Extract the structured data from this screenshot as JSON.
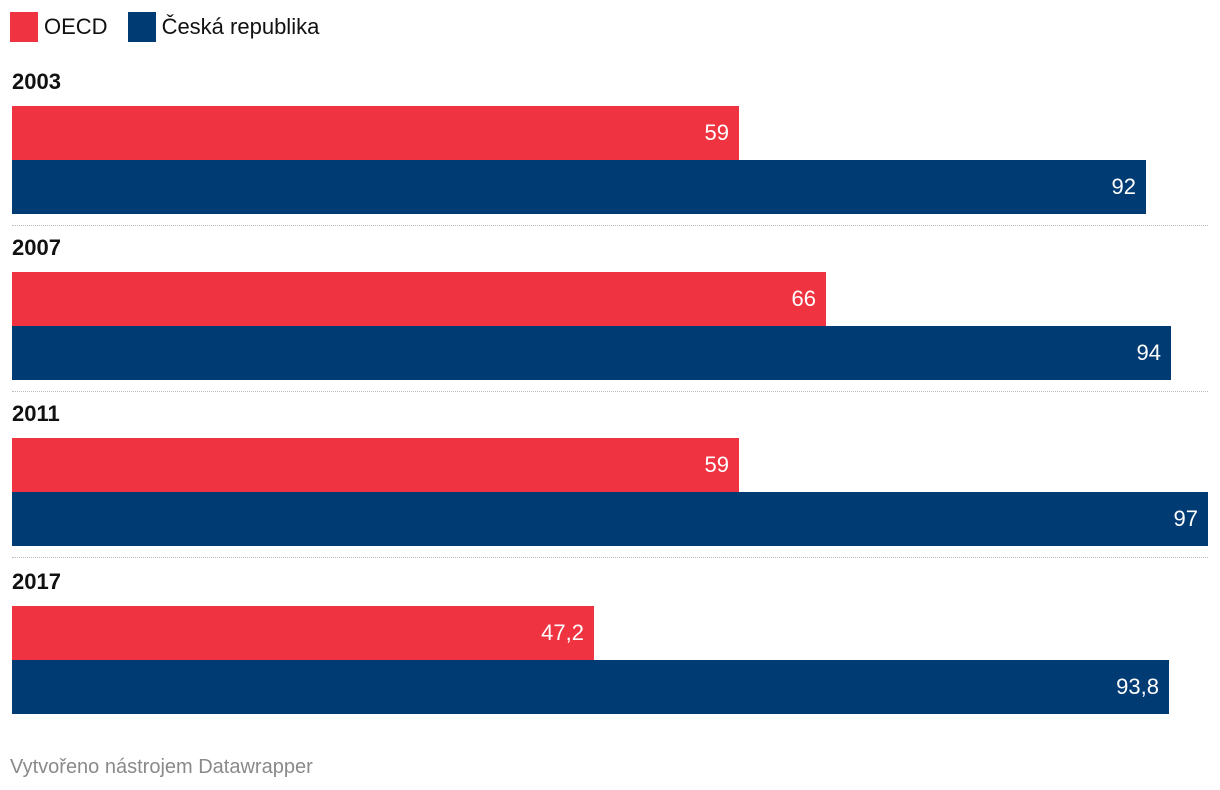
{
  "colors": {
    "oecd": "#ef3340",
    "czech": "#003b73"
  },
  "footer": {
    "credit": "Vytvořeno nástrojem Datawrapper"
  },
  "chart_data": {
    "type": "bar",
    "orientation": "horizontal",
    "legend_position": "top-left",
    "categories": [
      "2003",
      "2007",
      "2011",
      "2017"
    ],
    "value_labels": {
      "OECD": [
        "59",
        "66",
        "59",
        "47,2"
      ],
      "Česká republika": [
        "92",
        "94",
        "97",
        "93,8"
      ]
    },
    "series": [
      {
        "name": "OECD",
        "color": "#ef3340",
        "values": [
          59,
          66,
          59,
          47.2
        ]
      },
      {
        "name": "Česká republika",
        "color": "#003b73",
        "values": [
          92,
          94,
          97,
          93.8
        ]
      }
    ],
    "xlim": [
      0,
      97
    ],
    "grid": false,
    "title": "",
    "xlabel": "",
    "ylabel": ""
  }
}
